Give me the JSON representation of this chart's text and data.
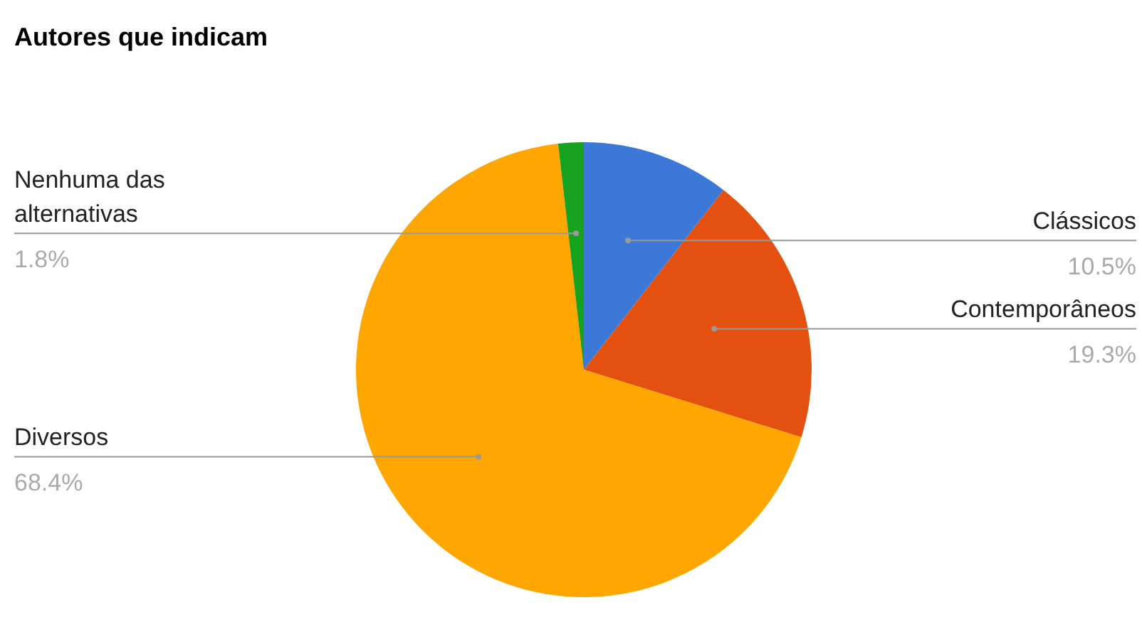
{
  "chart_data": {
    "type": "pie",
    "title": "Autores que indicam",
    "categories": [
      "Clássicos",
      "Contemporâneos",
      "Diversos",
      "Nenhuma das alternativas"
    ],
    "values": [
      10.5,
      19.3,
      68.4,
      1.8
    ],
    "colors": [
      "#3c78d8",
      "#e4500f",
      "#ffa600",
      "#16a21f"
    ],
    "value_labels": [
      "10.5%",
      "19.3%",
      "68.4%",
      "1.8%"
    ],
    "legend": false
  }
}
